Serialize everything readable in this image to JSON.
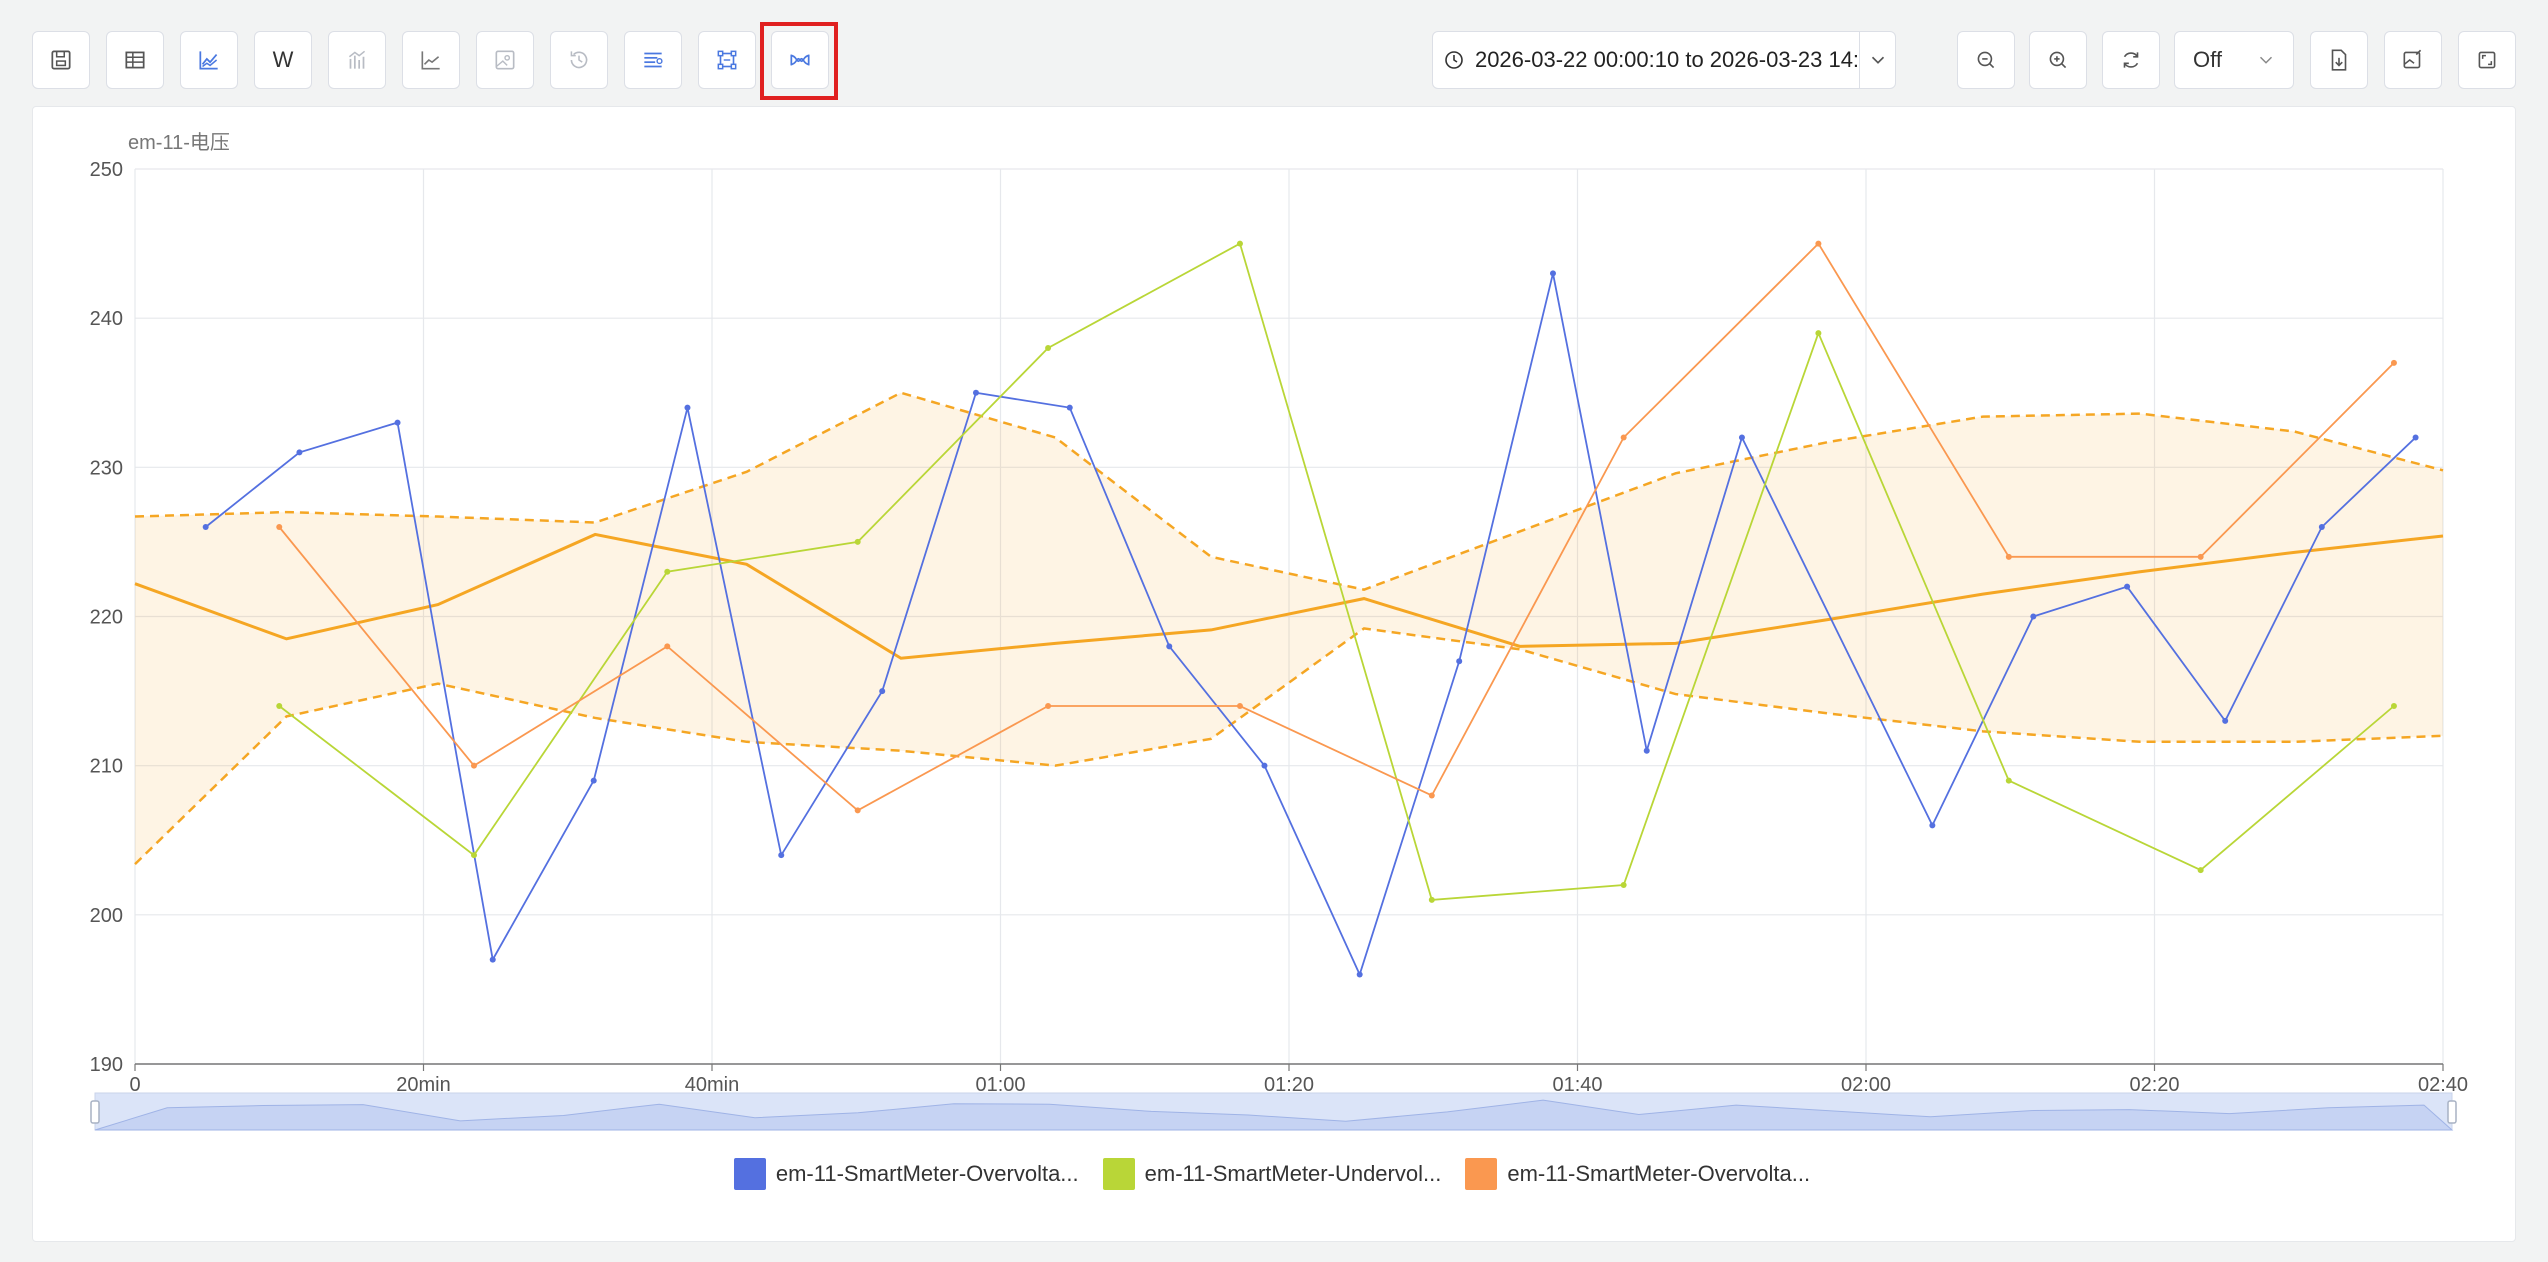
{
  "toolbar": {
    "buttons": [
      {
        "name": "save-icon",
        "tip": "save"
      },
      {
        "name": "table-icon",
        "tip": "table"
      },
      {
        "name": "line-chart-icon",
        "tip": "line"
      },
      {
        "name": "w-button",
        "label": "W"
      },
      {
        "name": "bar-chart-icon",
        "tip": "bar"
      },
      {
        "name": "area-chart-icon",
        "tip": "area"
      },
      {
        "name": "image-icon",
        "tip": "image"
      },
      {
        "name": "history-icon",
        "tip": "history"
      },
      {
        "name": "list-settings-icon",
        "tip": "list"
      },
      {
        "name": "box-select-icon",
        "tip": "select"
      },
      {
        "name": "band-icon",
        "tip": "band"
      }
    ],
    "time_range_text": "2026-03-22 00:00:10 to 2026-03-23 14:",
    "refresh_value": "Off",
    "colors": {
      "active": "#4a78e0",
      "inactive": "#b8bcc4",
      "dark": "#555"
    }
  },
  "chart_data": {
    "type": "line",
    "title": "em-11-电压",
    "x_unit": "minutes",
    "xlim": [
      0,
      160
    ],
    "ylim": [
      190,
      250
    ],
    "yticks": [
      190,
      200,
      210,
      220,
      230,
      240,
      250
    ],
    "xticks": [
      {
        "v": 0,
        "label": "0"
      },
      {
        "v": 20,
        "label": "20min"
      },
      {
        "v": 40,
        "label": "40min"
      },
      {
        "v": 60,
        "label": "01:00"
      },
      {
        "v": 80,
        "label": "01:20"
      },
      {
        "v": 100,
        "label": "01:40"
      },
      {
        "v": 120,
        "label": "02:00"
      },
      {
        "v": 140,
        "label": "02:20"
      },
      {
        "v": 160,
        "label": "02:40"
      }
    ],
    "series": [
      {
        "name": "em-11-SmartMeter-Overvolta...",
        "color": "#5470e0",
        "x": [
          4.9,
          11.4,
          18.2,
          24.8,
          31.8,
          38.3,
          44.8,
          51.8,
          58.3,
          64.8,
          71.7,
          78.3,
          84.9,
          91.8,
          98.3,
          104.8,
          111.4,
          124.6,
          131.6,
          138.1,
          144.9,
          151.6,
          158.1
        ],
        "y": [
          226,
          231,
          233,
          197,
          209,
          234,
          204,
          215,
          235,
          234,
          218,
          210,
          196,
          217,
          243,
          211,
          232,
          206,
          220,
          222,
          213,
          226,
          232
        ]
      },
      {
        "name": "em-11-SmartMeter-Undervol...",
        "color": "#b9d637",
        "x": [
          10,
          23.5,
          36.9,
          50.1,
          63.3,
          76.6,
          89.9,
          103.2,
          116.7,
          129.9,
          143.2,
          156.6
        ],
        "y": [
          214,
          204,
          223,
          225,
          238,
          245,
          201,
          202,
          239,
          209,
          203,
          214
        ]
      },
      {
        "name": "em-11-SmartMeter-Overvolta...",
        "color": "#fa9850",
        "x": [
          10,
          23.5,
          36.9,
          50.1,
          63.3,
          76.6,
          89.9,
          103.2,
          116.7,
          129.9,
          143.2,
          156.6
        ],
        "y": [
          226,
          210,
          218,
          207,
          214,
          214,
          208,
          232,
          245,
          224,
          224,
          237
        ]
      }
    ],
    "band": {
      "color": "#f5a623",
      "x": [
        0,
        10.5,
        21,
        31.9,
        42.4,
        53.1,
        63.8,
        74.6,
        85.2,
        96,
        106.8,
        117.4,
        128.1,
        139,
        149.7,
        160
      ],
      "mean": [
        222.2,
        218.5,
        220.8,
        225.5,
        223.5,
        217.2,
        218.2,
        219.1,
        221.2,
        218,
        218.2,
        219.8,
        221.5,
        223,
        224.3,
        225.4
      ],
      "upper": [
        226.7,
        227,
        226.7,
        226.3,
        229.7,
        235,
        232,
        224,
        221.8,
        225.7,
        229.6,
        231.7,
        233.4,
        233.6,
        232.4,
        229.8
      ],
      "lower": [
        203.4,
        213.3,
        215.5,
        213.2,
        211.6,
        211,
        210,
        211.8,
        219.2,
        217.8,
        214.8,
        213.5,
        212.3,
        211.6,
        211.6,
        212
      ]
    }
  }
}
